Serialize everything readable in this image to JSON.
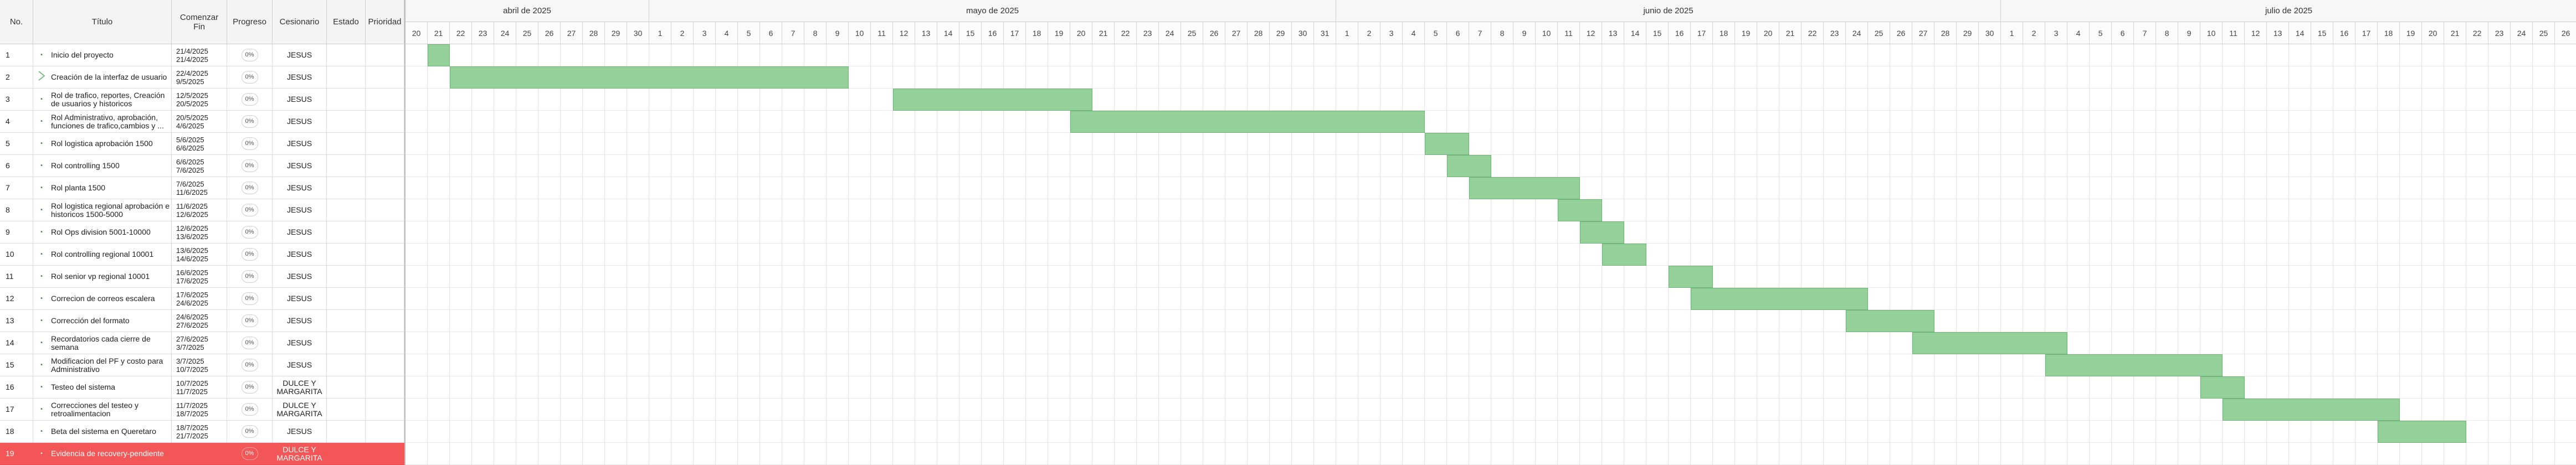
{
  "columns": {
    "no": "No.",
    "title": "Título",
    "start": "Comenzar",
    "end": "Fin",
    "progress": "Progreso",
    "assignee": "Cesionario",
    "status": "Estado",
    "priority": "Prioridad"
  },
  "timeline": {
    "months": [
      "abril de 2025",
      "mayo de 2025",
      "junio de 2025",
      "julio de 2025"
    ],
    "start_date": "2025-04-20",
    "end_date": "2025-07-26"
  },
  "tasks": [
    {
      "no": "1",
      "title": "Inicio del proyecto",
      "start": "21/4/2025",
      "end": "21/4/2025",
      "progress": "0%",
      "assignee": "JESUS",
      "bar_start": "2025-04-21",
      "bar_end": "2025-04-21"
    },
    {
      "no": "2",
      "title": "Creación de la interfaz de usuario",
      "start": "22/4/2025",
      "end": "9/5/2025",
      "progress": "0%",
      "assignee": "JESUS",
      "bar_start": "2025-04-22",
      "bar_end": "2025-05-09",
      "icon": "chevron-right-icon"
    },
    {
      "no": "3",
      "title": "Rol de trafico, reportes, Creación de usuarios y historicos",
      "start": "12/5/2025",
      "end": "20/5/2025",
      "progress": "0%",
      "assignee": "JESUS",
      "bar_start": "2025-05-12",
      "bar_end": "2025-05-20"
    },
    {
      "no": "4",
      "title": "Rol Administrativo, aprobación, funciones de trafico,cambios y ...",
      "start": "20/5/2025",
      "end": "4/6/2025",
      "progress": "0%",
      "assignee": "JESUS",
      "bar_start": "2025-05-20",
      "bar_end": "2025-06-04"
    },
    {
      "no": "5",
      "title": "Rol logistica aprobación 1500",
      "start": "5/6/2025",
      "end": "6/6/2025",
      "progress": "0%",
      "assignee": "JESUS",
      "bar_start": "2025-06-05",
      "bar_end": "2025-06-06"
    },
    {
      "no": "6",
      "title": "Rol controlling 1500",
      "start": "6/6/2025",
      "end": "7/6/2025",
      "progress": "0%",
      "assignee": "JESUS",
      "bar_start": "2025-06-06",
      "bar_end": "2025-06-07"
    },
    {
      "no": "7",
      "title": "Rol planta 1500",
      "start": "7/6/2025",
      "end": "11/6/2025",
      "progress": "0%",
      "assignee": "JESUS",
      "bar_start": "2025-06-07",
      "bar_end": "2025-06-11"
    },
    {
      "no": "8",
      "title": "Rol logistica regional aprobación e historicos 1500-5000",
      "start": "11/6/2025",
      "end": "12/6/2025",
      "progress": "0%",
      "assignee": "JESUS",
      "bar_start": "2025-06-11",
      "bar_end": "2025-06-12"
    },
    {
      "no": "9",
      "title": "Rol Ops division 5001-10000",
      "start": "12/6/2025",
      "end": "13/6/2025",
      "progress": "0%",
      "assignee": "JESUS",
      "bar_start": "2025-06-12",
      "bar_end": "2025-06-13"
    },
    {
      "no": "10",
      "title": "Rol controlling regional 10001",
      "start": "13/6/2025",
      "end": "14/6/2025",
      "progress": "0%",
      "assignee": "JESUS",
      "bar_start": "2025-06-13",
      "bar_end": "2025-06-14"
    },
    {
      "no": "11",
      "title": "Rol senior vp regional 10001",
      "start": "16/6/2025",
      "end": "17/6/2025",
      "progress": "0%",
      "assignee": "JESUS",
      "bar_start": "2025-06-16",
      "bar_end": "2025-06-17"
    },
    {
      "no": "12",
      "title": "Correcion de correos escalera",
      "start": "17/6/2025",
      "end": "24/6/2025",
      "progress": "0%",
      "assignee": "JESUS",
      "bar_start": "2025-06-17",
      "bar_end": "2025-06-24"
    },
    {
      "no": "13",
      "title": "Corrección del formato",
      "start": "24/6/2025",
      "end": "27/6/2025",
      "progress": "0%",
      "assignee": "JESUS",
      "bar_start": "2025-06-24",
      "bar_end": "2025-06-27"
    },
    {
      "no": "14",
      "title": "Recordatorios cada cierre de semana",
      "start": "27/6/2025",
      "end": "3/7/2025",
      "progress": "0%",
      "assignee": "JESUS",
      "bar_start": "2025-06-27",
      "bar_end": "2025-07-03"
    },
    {
      "no": "15",
      "title": "Modificacion del PF y costo para Administrativo",
      "start": "3/7/2025",
      "end": "10/7/2025",
      "progress": "0%",
      "assignee": "JESUS",
      "bar_start": "2025-07-03",
      "bar_end": "2025-07-10"
    },
    {
      "no": "16",
      "title": "Testeo del sistema",
      "start": "10/7/2025",
      "end": "11/7/2025",
      "progress": "0%",
      "assignee": "DULCE Y MARGARITA",
      "bar_start": "2025-07-10",
      "bar_end": "2025-07-11"
    },
    {
      "no": "17",
      "title": "Correcciones del testeo y retroalimentacion",
      "start": "11/7/2025",
      "end": "18/7/2025",
      "progress": "0%",
      "assignee": "DULCE Y MARGARITA",
      "bar_start": "2025-07-11",
      "bar_end": "2025-07-18"
    },
    {
      "no": "18",
      "title": "Beta del sistema en Queretaro",
      "start": "18/7/2025",
      "end": "21/7/2025",
      "progress": "0%",
      "assignee": "JESUS",
      "bar_start": "2025-07-18",
      "bar_end": "2025-07-21"
    },
    {
      "no": "19",
      "title": "Evidencia de recovery-pendiente",
      "start": "",
      "end": "",
      "progress": "0%",
      "assignee": "DULCE Y MARGARITA",
      "selected": true
    }
  ],
  "colors": {
    "bar_fill": "#94d19a",
    "bar_border": "#6fb576",
    "selected_row": "#f25656"
  }
}
